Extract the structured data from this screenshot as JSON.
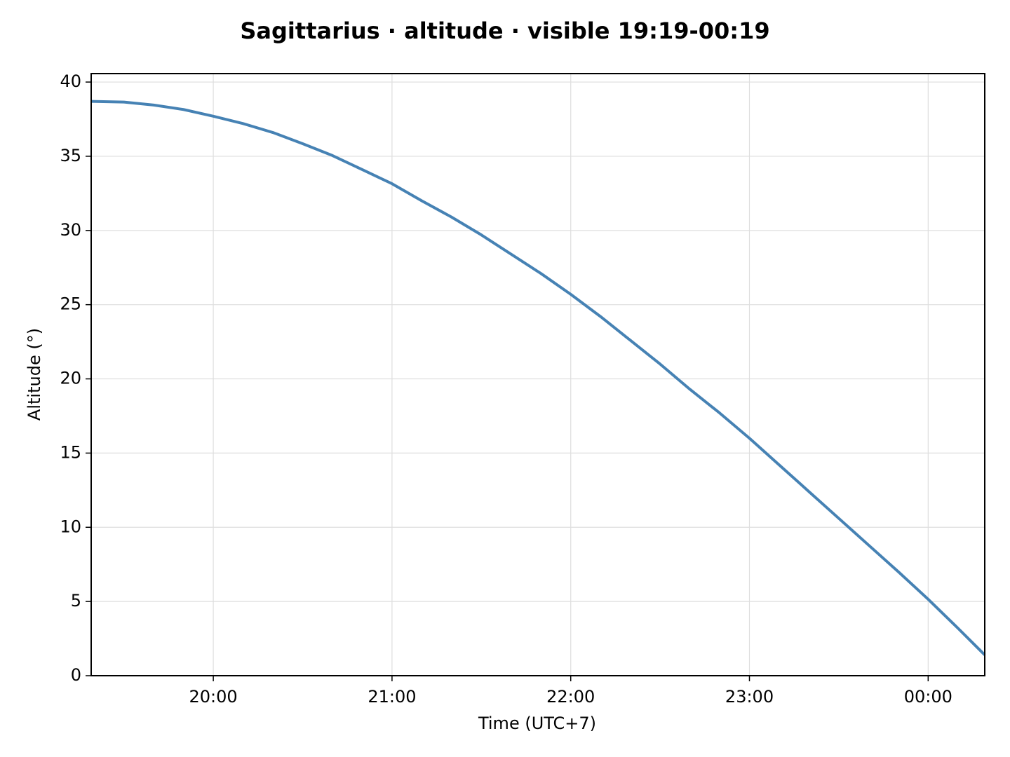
{
  "chart_data": {
    "type": "line",
    "title": "Sagittarius · altitude · visible 19:19-00:19",
    "x_label": "Time (UTC+7)",
    "y_label": "Altitude (°)",
    "x": [
      "19:19",
      "19:30",
      "19:40",
      "19:50",
      "20:00",
      "20:10",
      "20:20",
      "20:30",
      "20:40",
      "20:50",
      "21:00",
      "21:10",
      "21:20",
      "21:30",
      "21:40",
      "21:50",
      "22:00",
      "22:10",
      "22:20",
      "22:30",
      "22:40",
      "22:50",
      "23:00",
      "23:10",
      "23:20",
      "23:30",
      "23:40",
      "23:50",
      "00:00",
      "00:10",
      "00:19"
    ],
    "values": [
      38.7,
      38.65,
      38.45,
      38.15,
      37.7,
      37.2,
      36.6,
      35.85,
      35.05,
      34.1,
      33.15,
      32.0,
      30.9,
      29.7,
      28.4,
      27.1,
      25.7,
      24.2,
      22.6,
      21.0,
      19.3,
      17.7,
      16.0,
      14.2,
      12.4,
      10.6,
      8.8,
      7.0,
      5.15,
      3.2,
      1.4
    ],
    "color": "#4682b4",
    "xlim": [
      "19:19",
      "00:19"
    ],
    "xticks": [
      "20:00",
      "21:00",
      "22:00",
      "23:00",
      "00:00"
    ],
    "ylim": [
      0,
      40.57
    ],
    "yticks": [
      0,
      5,
      10,
      15,
      20,
      25,
      30,
      35,
      40
    ],
    "grid": true
  }
}
